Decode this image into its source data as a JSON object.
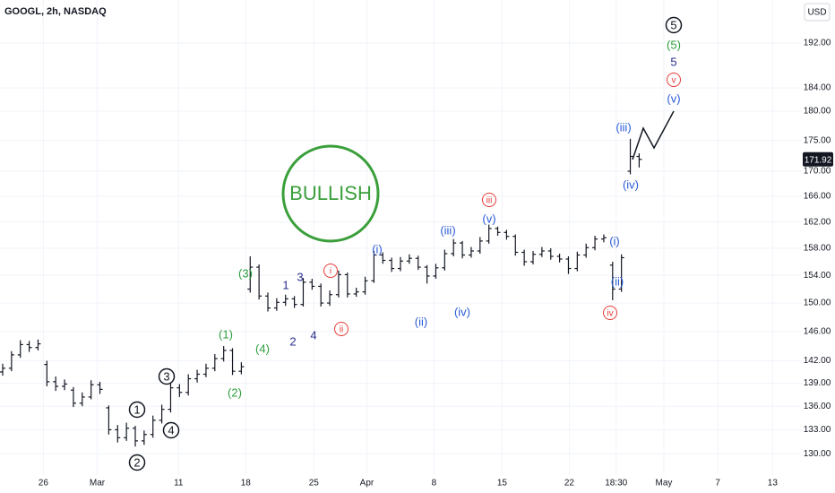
{
  "chart_data": {
    "type": "ohlc",
    "title": "GOOGL, 2h, NASDAQ",
    "currency": "USD",
    "color": "#131722",
    "log_scale": true,
    "ylim": [
      127.4,
      200
    ],
    "yticks": [
      {
        "value": 130,
        "label": "130.00"
      },
      {
        "value": 133,
        "label": "133.00"
      },
      {
        "value": 136,
        "label": "136.00"
      },
      {
        "value": 139,
        "label": "139.00"
      },
      {
        "value": 142,
        "label": "142.00"
      },
      {
        "value": 146,
        "label": "146.00"
      },
      {
        "value": 150,
        "label": "150.00"
      },
      {
        "value": 154,
        "label": "154.00"
      },
      {
        "value": 158,
        "label": "158.00"
      },
      {
        "value": 162,
        "label": "162.00"
      },
      {
        "value": 166,
        "label": "166.00"
      },
      {
        "value": 170,
        "label": "170.00"
      },
      {
        "value": 175,
        "label": "175.00"
      },
      {
        "value": 180,
        "label": "180.00"
      },
      {
        "value": 184,
        "label": "184.00"
      },
      {
        "value": 192,
        "label": "192.00"
      }
    ],
    "xlim": [
      0,
      90
    ],
    "xticks": [
      {
        "value": 4.9,
        "label": "26"
      },
      {
        "value": 11,
        "label": "Mar"
      },
      {
        "value": 20.2,
        "label": "11"
      },
      {
        "value": 27.8,
        "label": "18"
      },
      {
        "value": 35.5,
        "label": "25"
      },
      {
        "value": 41.5,
        "label": "Apr"
      },
      {
        "value": 49.1,
        "label": "8"
      },
      {
        "value": 56.8,
        "label": "15"
      },
      {
        "value": 64.4,
        "label": "22"
      },
      {
        "value": 69.7,
        "label": "18:30"
      },
      {
        "value": 75.1,
        "label": "May"
      },
      {
        "value": 81.2,
        "label": "7"
      },
      {
        "value": 87.4,
        "label": "13"
      }
    ],
    "bars": [
      [
        140.5,
        141.6,
        140.0,
        141.0
      ],
      [
        141.0,
        143.3,
        140.6,
        142.8
      ],
      [
        142.8,
        144.8,
        142.4,
        144.2
      ],
      [
        144.2,
        144.7,
        143.2,
        143.8
      ],
      [
        143.8,
        144.9,
        143.4,
        144.3
      ],
      [
        141.5,
        142.0,
        138.6,
        139.2
      ],
      [
        139.2,
        139.9,
        138.0,
        138.6
      ],
      [
        138.6,
        139.5,
        138.1,
        138.9
      ],
      [
        138.1,
        138.5,
        135.9,
        136.4
      ],
      [
        136.4,
        137.8,
        136.0,
        137.2
      ],
      [
        137.2,
        139.4,
        136.9,
        138.8
      ],
      [
        138.8,
        139.2,
        137.6,
        138.2
      ],
      [
        135.8,
        136.1,
        132.4,
        133.0
      ],
      [
        133.0,
        133.6,
        131.4,
        132.0
      ],
      [
        132.0,
        133.9,
        131.6,
        133.2
      ],
      [
        133.2,
        133.5,
        130.9,
        131.6
      ],
      [
        131.6,
        132.9,
        131.1,
        132.4
      ],
      [
        132.4,
        134.8,
        132.0,
        134.2
      ],
      [
        134.2,
        136.2,
        133.8,
        135.6
      ],
      [
        135.6,
        139.1,
        135.2,
        138.4
      ],
      [
        138.4,
        138.9,
        137.2,
        137.8
      ],
      [
        137.8,
        140.2,
        137.4,
        139.6
      ],
      [
        139.6,
        140.8,
        139.1,
        140.2
      ],
      [
        140.2,
        141.6,
        139.8,
        141.0
      ],
      [
        141.0,
        142.9,
        140.6,
        142.3
      ],
      [
        142.3,
        144.0,
        141.9,
        143.4
      ],
      [
        143.4,
        143.7,
        140.1,
        140.6
      ],
      [
        140.6,
        141.8,
        140.2,
        141.2
      ],
      [
        152.0,
        156.8,
        151.5,
        155.2
      ],
      [
        155.2,
        155.6,
        150.5,
        151.0
      ],
      [
        151.0,
        151.5,
        148.8,
        149.3
      ],
      [
        149.3,
        150.7,
        148.9,
        150.1
      ],
      [
        150.1,
        151.2,
        149.6,
        150.6
      ],
      [
        150.6,
        151.0,
        149.3,
        149.8
      ],
      [
        149.8,
        153.6,
        149.5,
        153.0
      ],
      [
        153.0,
        153.5,
        151.9,
        152.4
      ],
      [
        152.4,
        152.8,
        149.5,
        150.0
      ],
      [
        150.0,
        151.8,
        149.6,
        151.2
      ],
      [
        151.2,
        154.7,
        150.8,
        154.1
      ],
      [
        154.1,
        154.4,
        150.8,
        151.3
      ],
      [
        151.3,
        152.2,
        150.9,
        151.6
      ],
      [
        151.6,
        153.8,
        151.2,
        153.2
      ],
      [
        153.2,
        157.6,
        152.9,
        157.0
      ],
      [
        157.0,
        157.4,
        155.7,
        156.2
      ],
      [
        156.2,
        156.6,
        154.5,
        155.0
      ],
      [
        155.0,
        156.7,
        154.6,
        156.1
      ],
      [
        156.1,
        157.1,
        155.7,
        156.5
      ],
      [
        156.5,
        156.9,
        154.8,
        155.2
      ],
      [
        155.2,
        155.5,
        152.8,
        153.9
      ],
      [
        153.9,
        155.7,
        153.5,
        155.1
      ],
      [
        155.1,
        157.8,
        154.7,
        157.2
      ],
      [
        157.2,
        159.4,
        156.8,
        158.8
      ],
      [
        158.8,
        159.1,
        156.5,
        157.0
      ],
      [
        157.0,
        158.2,
        156.6,
        157.6
      ],
      [
        157.6,
        159.7,
        157.2,
        159.1
      ],
      [
        159.1,
        161.6,
        158.7,
        161.0
      ],
      [
        161.0,
        161.3,
        159.9,
        160.4
      ],
      [
        160.4,
        160.8,
        159.3,
        159.8
      ],
      [
        159.8,
        160.1,
        156.9,
        157.4
      ],
      [
        157.4,
        157.8,
        155.4,
        156.0
      ],
      [
        156.0,
        157.6,
        155.6,
        157.1
      ],
      [
        157.1,
        158.2,
        156.7,
        157.6
      ],
      [
        157.6,
        158.0,
        156.3,
        156.8
      ],
      [
        156.8,
        157.2,
        155.9,
        156.4
      ],
      [
        156.4,
        156.8,
        154.2,
        155.0
      ],
      [
        155.0,
        157.5,
        154.6,
        157.0
      ],
      [
        157.0,
        158.7,
        156.6,
        158.1
      ],
      [
        158.1,
        159.9,
        157.7,
        159.4
      ],
      [
        159.4,
        160.1,
        158.9,
        159.6
      ],
      [
        155.5,
        156.0,
        150.4,
        152.0
      ],
      [
        152.0,
        157.1,
        151.6,
        156.6
      ],
      [
        170.0,
        175.3,
        169.5,
        172.4
      ],
      [
        172.4,
        172.9,
        170.6,
        171.92
      ]
    ],
    "last_price": 171.92,
    "bullish": {
      "text": "BULLISH",
      "color": "#3a9f3a"
    },
    "annotations": [
      {
        "text": "1",
        "color": "#131722",
        "circled": true
      },
      {
        "text": "2",
        "color": "#131722",
        "circled": true
      },
      {
        "text": "3",
        "color": "#131722",
        "circled": true
      },
      {
        "text": "4",
        "color": "#131722",
        "circled": true
      },
      {
        "text": "5",
        "color": "#131722",
        "circled": true
      },
      {
        "text": "(1)",
        "color": "#2e9e3e",
        "circled": false
      },
      {
        "text": "(2)",
        "color": "#2e9e3e",
        "circled": false
      },
      {
        "text": "(3)",
        "color": "#2e9e3e",
        "circled": false
      },
      {
        "text": "(4)",
        "color": "#2e9e3e",
        "circled": false
      },
      {
        "text": "(5)",
        "color": "#2e9e3e",
        "circled": false
      },
      {
        "text": "1",
        "color": "#2a2e8c",
        "circled": false
      },
      {
        "text": "2",
        "color": "#2a2e8c",
        "circled": false
      },
      {
        "text": "3",
        "color": "#2a2e8c",
        "circled": false
      },
      {
        "text": "4",
        "color": "#2a2e8c",
        "circled": false
      },
      {
        "text": "5",
        "color": "#2a2e8c",
        "circled": false
      },
      {
        "text": "i",
        "color": "#e53935",
        "circled": true
      },
      {
        "text": "ii",
        "color": "#e53935",
        "circled": true
      },
      {
        "text": "iii",
        "color": "#e53935",
        "circled": true
      },
      {
        "text": "iv",
        "color": "#e53935",
        "circled": true
      },
      {
        "text": "v",
        "color": "#e53935",
        "circled": true
      },
      {
        "text": "(i)",
        "color": "#2a5bd7",
        "circled": false
      },
      {
        "text": "(ii)",
        "color": "#2a5bd7",
        "circled": false
      },
      {
        "text": "(iii)",
        "color": "#2a5bd7",
        "circled": false
      },
      {
        "text": "(iv)",
        "color": "#2a5bd7",
        "circled": false
      },
      {
        "text": "(v)",
        "color": "#2a5bd7",
        "circled": false
      },
      {
        "text": "(i)",
        "color": "#2a5bd7",
        "circled": false
      },
      {
        "text": "(ii)",
        "color": "#2a5bd7",
        "circled": false
      },
      {
        "text": "(iii)",
        "color": "#2a5bd7",
        "circled": false
      },
      {
        "text": "(iv)",
        "color": "#2a5bd7",
        "circled": false
      },
      {
        "text": "(v)",
        "color": "#2a5bd7",
        "circled": false
      }
    ]
  }
}
